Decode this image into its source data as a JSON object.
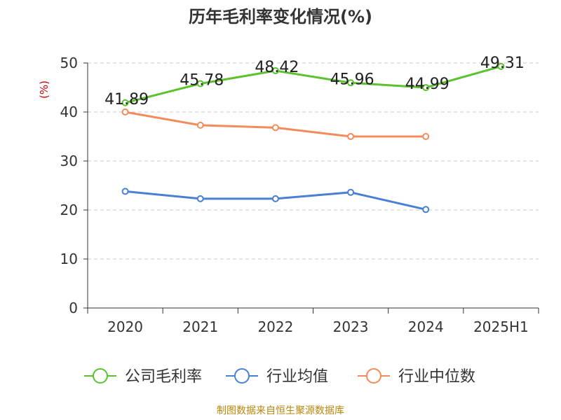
{
  "chart_data": {
    "type": "line",
    "title": "历年毛利率变化情况(%)",
    "ylabel": "(%)",
    "xlabel": "",
    "categories": [
      "2020",
      "2021",
      "2022",
      "2023",
      "2024",
      "2025H1"
    ],
    "ylim": [
      0,
      50
    ],
    "yticks": [
      0,
      10,
      20,
      30,
      40,
      50
    ],
    "grid": true,
    "legend_position": "bottom",
    "series": [
      {
        "name": "公司毛利率",
        "color": "#5cc12f",
        "show_labels": true,
        "values": [
          41.89,
          45.78,
          48.42,
          45.96,
          44.99,
          49.31
        ]
      },
      {
        "name": "行业均值",
        "color": "#4a7fd6",
        "show_labels": false,
        "values": [
          23.8,
          22.3,
          22.3,
          23.6,
          20.1,
          null
        ]
      },
      {
        "name": "行业中位数",
        "color": "#f38b5a",
        "show_labels": false,
        "values": [
          40.0,
          37.3,
          36.8,
          35.0,
          35.0,
          null
        ]
      }
    ]
  },
  "source": "制图数据来自恒生聚源数据库"
}
